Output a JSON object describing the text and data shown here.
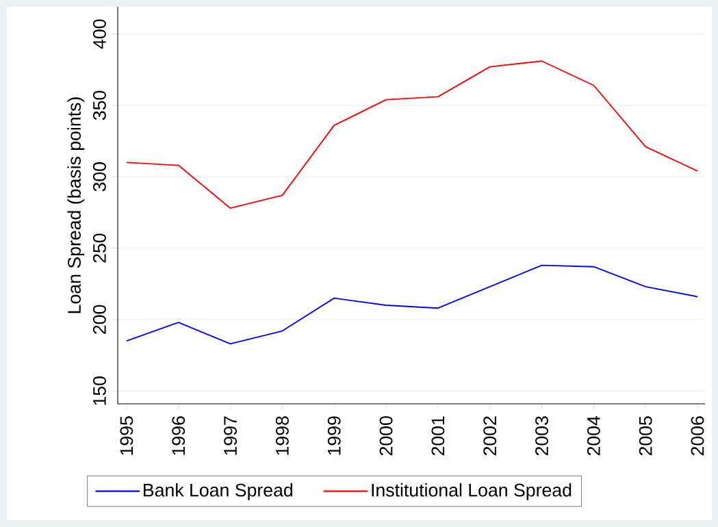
{
  "chart_data": {
    "type": "line",
    "ylabel": "Loan Spread (basis points)",
    "categories": [
      "1995",
      "1996",
      "1997",
      "1998",
      "1999",
      "2000",
      "2001",
      "2002",
      "2003",
      "2004",
      "2005",
      "2006"
    ],
    "series": [
      {
        "name": "Bank Loan Spread",
        "color": "#0000ff",
        "values": [
          185,
          198,
          183,
          192,
          215,
          210,
          208,
          223,
          238,
          237,
          223,
          216
        ]
      },
      {
        "name": "Institutional Loan Spread",
        "color": "#ff0000",
        "values": [
          310,
          308,
          278,
          287,
          336,
          354,
          356,
          377,
          381,
          364,
          321,
          304
        ]
      }
    ],
    "ylim": [
      141,
      419
    ],
    "yticks": [
      150,
      200,
      250,
      300,
      350,
      400
    ],
    "grid": "y",
    "legend": "bottom",
    "marker": "none",
    "line_style": "solid"
  }
}
